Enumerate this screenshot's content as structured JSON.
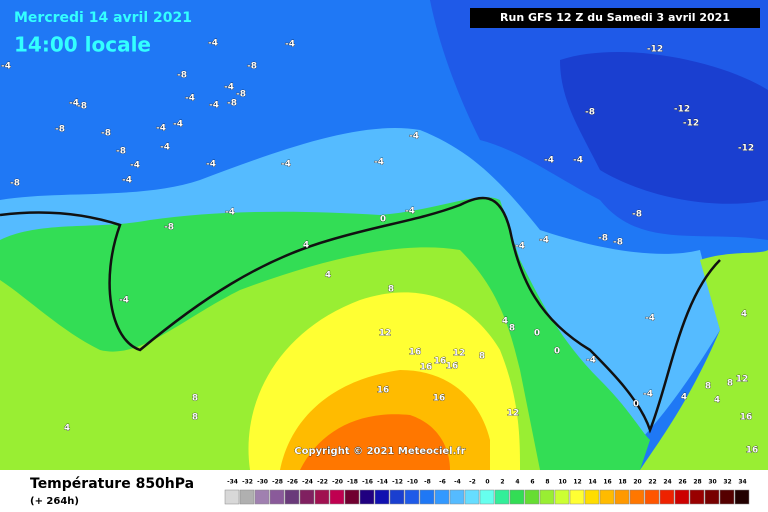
{
  "header": {
    "date": "Mercredi 14 avril 2021",
    "time": "14:00 locale",
    "run": "Run GFS 12 Z du Samedi 3 avril 2021"
  },
  "copyright": "Copyright © 2021 Meteociel.fr",
  "footer": {
    "title": "Température 850hPa",
    "subtitle": "(+ 264h)"
  },
  "map_labels": [
    -4,
    -4,
    -8,
    -8,
    -4,
    -8,
    -4,
    -4,
    -8,
    -4,
    -4,
    -8,
    -8,
    -8,
    -4,
    -4,
    -8,
    -4,
    -4,
    -4,
    -8,
    -4,
    -4,
    -4,
    -4,
    -4,
    -8,
    -4,
    0,
    4,
    4,
    -4,
    8,
    12,
    16,
    16,
    12,
    16,
    16,
    8,
    16,
    16,
    8,
    8,
    4,
    12,
    -12,
    -12,
    -12,
    -12,
    -8,
    -4,
    -4,
    -8,
    -8,
    -8,
    -4,
    -4,
    4,
    8,
    0,
    0,
    -4,
    -4,
    4,
    0,
    -4,
    4,
    4,
    12,
    16,
    8,
    8,
    16
  ],
  "scale": {
    "values": [
      -34,
      -32,
      -30,
      -28,
      -26,
      -24,
      -22,
      -20,
      -18,
      -16,
      -14,
      -12,
      -10,
      -8,
      -6,
      -4,
      -2,
      0,
      2,
      4,
      6,
      8,
      10,
      12,
      14,
      16,
      18,
      20,
      22,
      24,
      26,
      28,
      30,
      32,
      34
    ],
    "colors": [
      "#d8d8d8",
      "#b0b0b0",
      "#a080b0",
      "#8a5a9a",
      "#6a3a7a",
      "#802060",
      "#a01050",
      "#c00050",
      "#700030",
      "#200080",
      "#1010b0",
      "#1a3fd0",
      "#1f5ae8",
      "#1f78f5",
      "#3399ff",
      "#55bbff",
      "#66ddff",
      "#66ffee",
      "#33ee99",
      "#33dd55",
      "#66dd33",
      "#99ee33",
      "#ccff33",
      "#ffff33",
      "#ffdd00",
      "#ffbb00",
      "#ff9900",
      "#ff7700",
      "#ff5500",
      "#ee2200",
      "#cc0000",
      "#990000",
      "#770000",
      "#550000",
      "#220000"
    ]
  }
}
